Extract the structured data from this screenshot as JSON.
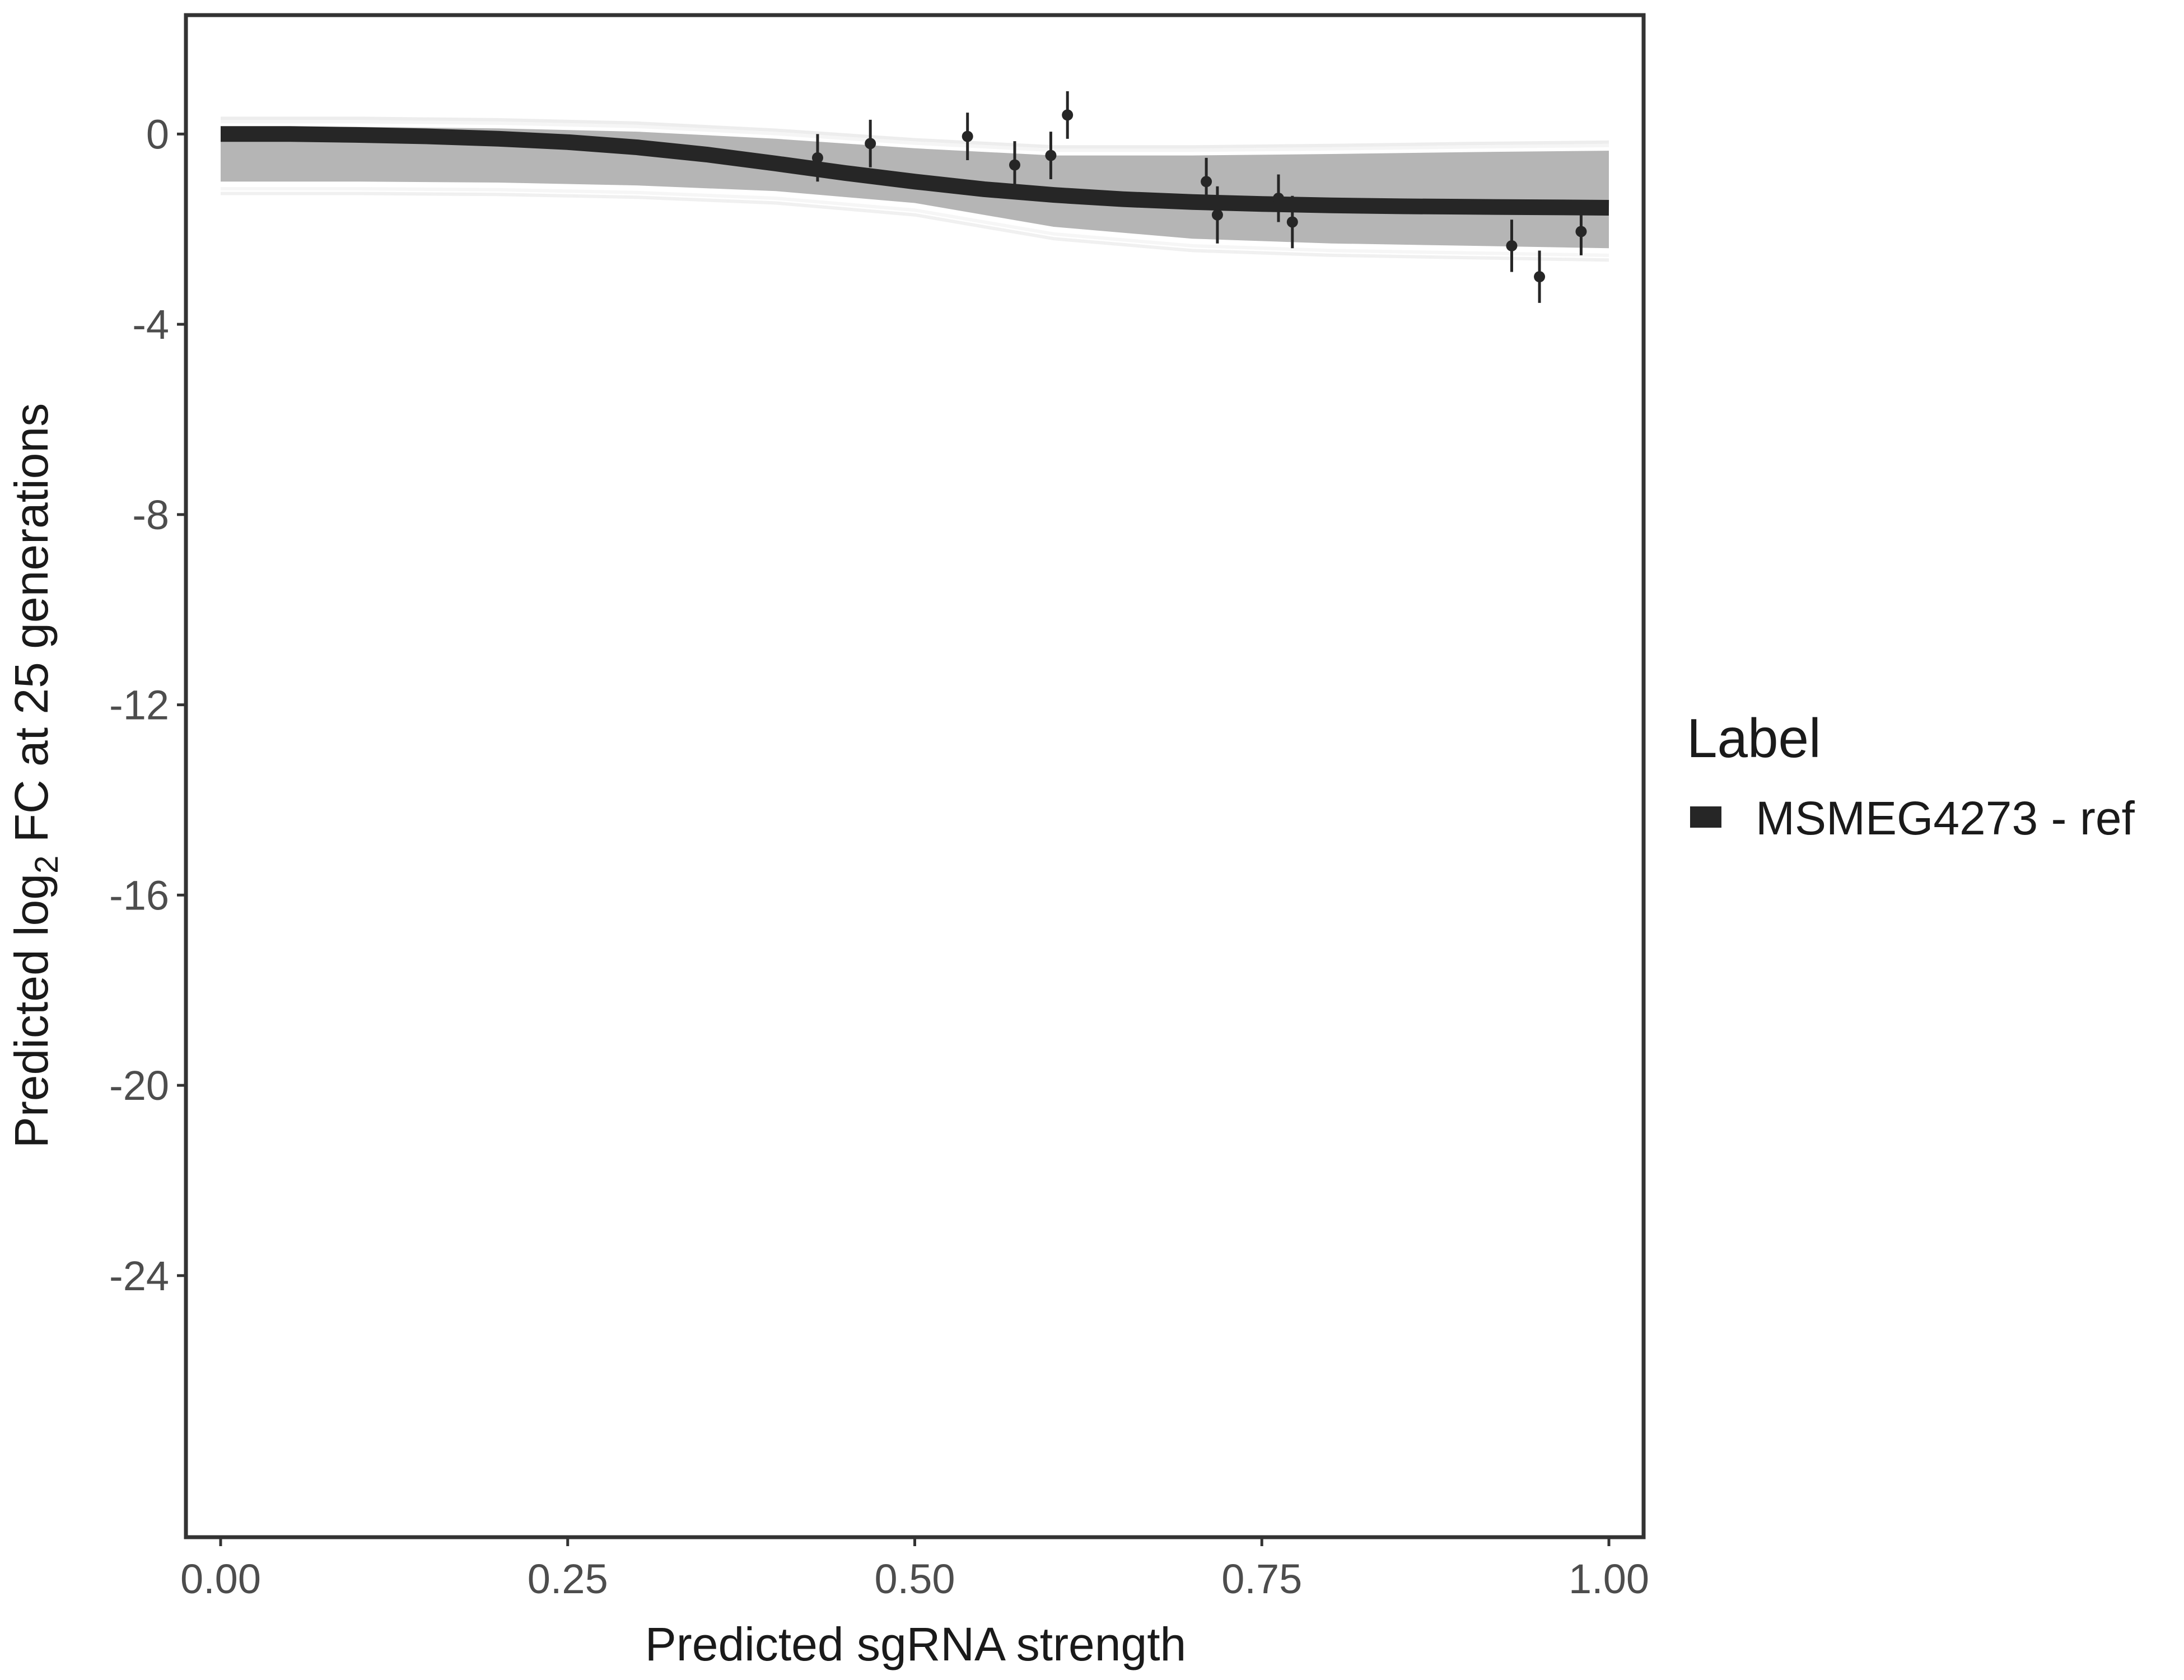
{
  "chart_data": {
    "type": "line",
    "xlabel": "Predicted sgRNA strength",
    "ylabel": {
      "before": "Predicted  log",
      "sub": "2",
      "after": " FC at 25 generations"
    },
    "xlim": [
      -0.025,
      1.025
    ],
    "ylim": [
      -29.5,
      2.5
    ],
    "x_ticks": [
      0,
      0.25,
      0.5,
      0.75,
      1.0
    ],
    "x_tick_labels": [
      "0.00",
      "0.25",
      "0.50",
      "0.75",
      "1.00"
    ],
    "y_ticks": [
      0,
      -4,
      -8,
      -12,
      -16,
      -20,
      -24
    ],
    "y_tick_labels": [
      "0",
      "-4",
      "-8",
      "-12",
      "-16",
      "-20",
      "-24"
    ],
    "grid": false,
    "legend": {
      "title": "Label",
      "entries": [
        "MSMEG4273 - ref"
      ],
      "position": "right"
    },
    "series": [
      {
        "name": "MSMEG4273 - ref",
        "color": "#262626",
        "fit": {
          "x": [
            0.0,
            0.05,
            0.1,
            0.15,
            0.2,
            0.25,
            0.3,
            0.35,
            0.4,
            0.45,
            0.5,
            0.55,
            0.6,
            0.65,
            0.7,
            0.75,
            0.8,
            0.85,
            0.9,
            0.95,
            1.0
          ],
          "y": [
            0.0,
            0.0,
            -0.02,
            -0.05,
            -0.1,
            -0.17,
            -0.28,
            -0.43,
            -0.62,
            -0.82,
            -1.0,
            -1.16,
            -1.28,
            -1.37,
            -1.43,
            -1.47,
            -1.5,
            -1.52,
            -1.53,
            -1.54,
            -1.55
          ]
        },
        "points": [
          {
            "x": 0.43,
            "y": -0.5,
            "ylow": -1.0,
            "yhigh": 0.0
          },
          {
            "x": 0.468,
            "y": -0.2,
            "ylow": -0.7,
            "yhigh": 0.3
          },
          {
            "x": 0.538,
            "y": -0.05,
            "ylow": -0.55,
            "yhigh": 0.45
          },
          {
            "x": 0.572,
            "y": -0.65,
            "ylow": -1.15,
            "yhigh": -0.15
          },
          {
            "x": 0.598,
            "y": -0.45,
            "ylow": -0.95,
            "yhigh": 0.05
          },
          {
            "x": 0.61,
            "y": 0.4,
            "ylow": -0.1,
            "yhigh": 0.9
          },
          {
            "x": 0.71,
            "y": -1.0,
            "ylow": -1.5,
            "yhigh": -0.5
          },
          {
            "x": 0.718,
            "y": -1.7,
            "ylow": -2.3,
            "yhigh": -1.1
          },
          {
            "x": 0.762,
            "y": -1.35,
            "ylow": -1.85,
            "yhigh": -0.85
          },
          {
            "x": 0.772,
            "y": -1.85,
            "ylow": -2.4,
            "yhigh": -1.3
          },
          {
            "x": 0.93,
            "y": -2.35,
            "ylow": -2.9,
            "yhigh": -1.8
          },
          {
            "x": 0.95,
            "y": -3.0,
            "ylow": -3.55,
            "yhigh": -2.45
          },
          {
            "x": 0.98,
            "y": -2.05,
            "ylow": -2.55,
            "yhigh": -1.55
          }
        ],
        "posterior_band": {
          "x": [
            0.0,
            0.1,
            0.2,
            0.3,
            0.4,
            0.5,
            0.6,
            0.7,
            0.8,
            0.9,
            1.0
          ],
          "upper": [
            0.15,
            0.15,
            0.12,
            0.05,
            -0.1,
            -0.3,
            -0.45,
            -0.45,
            -0.42,
            -0.38,
            -0.35
          ],
          "lower": [
            -1.0,
            -1.0,
            -1.02,
            -1.08,
            -1.2,
            -1.45,
            -1.95,
            -2.2,
            -2.3,
            -2.35,
            -2.4
          ]
        }
      }
    ]
  }
}
